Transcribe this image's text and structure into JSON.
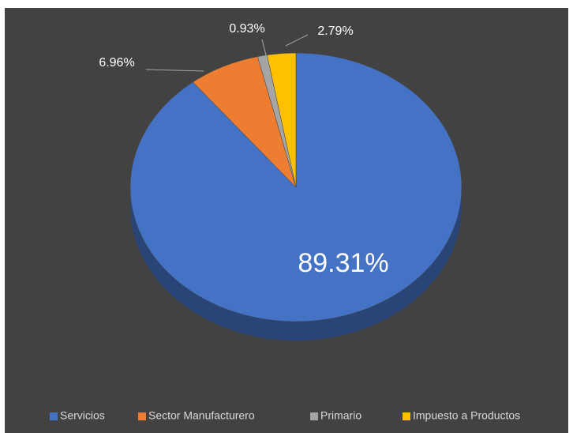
{
  "chart_data": {
    "type": "pie",
    "categories": [
      "Servicios",
      "Sector Manufacturero",
      "Primario",
      "Impuesto a Productos"
    ],
    "values": [
      89.31,
      6.96,
      0.93,
      2.79
    ],
    "value_labels": [
      "89.31%",
      "6.96%",
      "0.93%",
      "2.79%"
    ],
    "colors": [
      "#4472c4",
      "#ed7d31",
      "#a5a5a5",
      "#ffc000"
    ],
    "legend": "bottom"
  }
}
